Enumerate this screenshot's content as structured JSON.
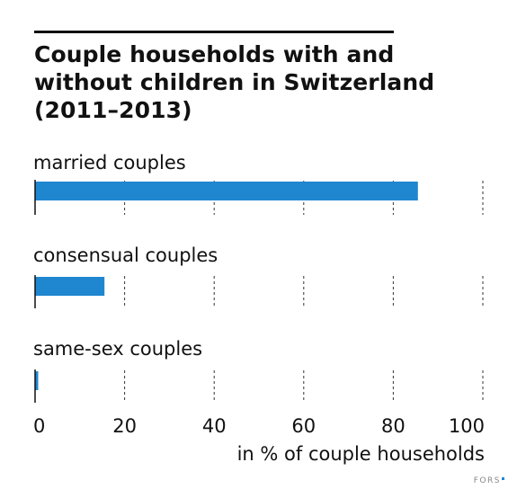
{
  "brand": {
    "name": "FORS",
    "accent": "#1f86d0"
  },
  "chart_data": {
    "type": "bar",
    "orientation": "horizontal",
    "title": "Couple households with and without children in Switzerland (2011–2013)",
    "title_lines": [
      "Couple households with and",
      "without children in Switzerland",
      "(2011–2013)"
    ],
    "categories": [
      "married couples",
      "consensual couples",
      "same-sex couples"
    ],
    "values": [
      85.5,
      15.5,
      0.7
    ],
    "xlabel": "in % of couple households",
    "xlim": [
      0,
      100
    ],
    "xticks": [
      0,
      20,
      40,
      60,
      80,
      100
    ],
    "grid": "vertical dashed",
    "bar_color": "#1f86d0"
  }
}
